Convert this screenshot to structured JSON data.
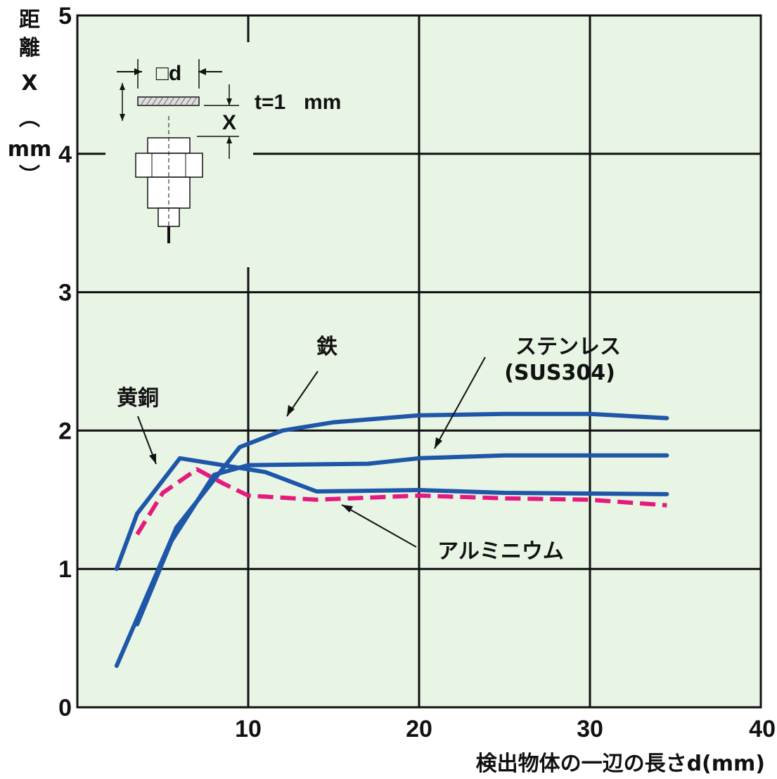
{
  "chart_data": {
    "type": "line",
    "xlabel": "検出物体の一辺の長さd(mm)",
    "ylabel_chars": [
      "距",
      "離",
      "X",
      "︵",
      "mm",
      "︶"
    ],
    "xlim": [
      0,
      40
    ],
    "ylim": [
      0,
      5
    ],
    "x_ticks": [
      "10",
      "20",
      "30",
      "40"
    ],
    "y_ticks": [
      "0",
      "1",
      "2",
      "3",
      "4",
      "5"
    ],
    "grid": true,
    "plot_background": "#E8F4E4",
    "series": [
      {
        "name": "鉄",
        "color": "#1E56A8",
        "dash": false,
        "points": [
          [
            2.3,
            0.3
          ],
          [
            5.8,
            1.3
          ],
          [
            9.5,
            1.88
          ],
          [
            12,
            2.0
          ],
          [
            15,
            2.06
          ],
          [
            20,
            2.11
          ],
          [
            25,
            2.12
          ],
          [
            30,
            2.12
          ],
          [
            34.5,
            2.09
          ]
        ]
      },
      {
        "name": "ステンレス (SUS304)",
        "color": "#1E56A8",
        "dash": false,
        "points": [
          [
            3.5,
            0.6
          ],
          [
            5.5,
            1.2
          ],
          [
            8,
            1.68
          ],
          [
            10,
            1.75
          ],
          [
            17,
            1.76
          ],
          [
            20,
            1.8
          ],
          [
            25,
            1.82
          ],
          [
            34.5,
            1.82
          ]
        ]
      },
      {
        "name": "黄銅",
        "color": "#1E56A8",
        "dash": false,
        "points": [
          [
            2.3,
            1.0
          ],
          [
            3.5,
            1.4
          ],
          [
            6.0,
            1.8
          ],
          [
            8,
            1.76
          ],
          [
            11,
            1.7
          ],
          [
            14,
            1.56
          ],
          [
            20,
            1.57
          ],
          [
            25,
            1.55
          ],
          [
            34.5,
            1.54
          ]
        ]
      },
      {
        "name": "アルミニウム",
        "color": "#E6197F",
        "dash": true,
        "points": [
          [
            3.5,
            1.25
          ],
          [
            5,
            1.55
          ],
          [
            7,
            1.72
          ],
          [
            8.5,
            1.62
          ],
          [
            10,
            1.53
          ],
          [
            14,
            1.5
          ],
          [
            20,
            1.53
          ],
          [
            25,
            1.51
          ],
          [
            30,
            1.5
          ],
          [
            34.5,
            1.46
          ]
        ]
      }
    ],
    "annotations": [
      {
        "text": "鉄",
        "target_series": "鉄"
      },
      {
        "text": "ステンレス",
        "target_series": "ステンレス (SUS304)"
      },
      {
        "text": "(SUS304)",
        "target_series": "ステンレス (SUS304)"
      },
      {
        "text": "黄銅",
        "target_series": "黄銅"
      },
      {
        "text": "アルミニウム",
        "target_series": "アルミニウム"
      }
    ]
  },
  "inset_diagram": {
    "target_label": "□d",
    "thickness_label": "t=1",
    "thickness_unit": "mm",
    "distance_label": "X"
  }
}
